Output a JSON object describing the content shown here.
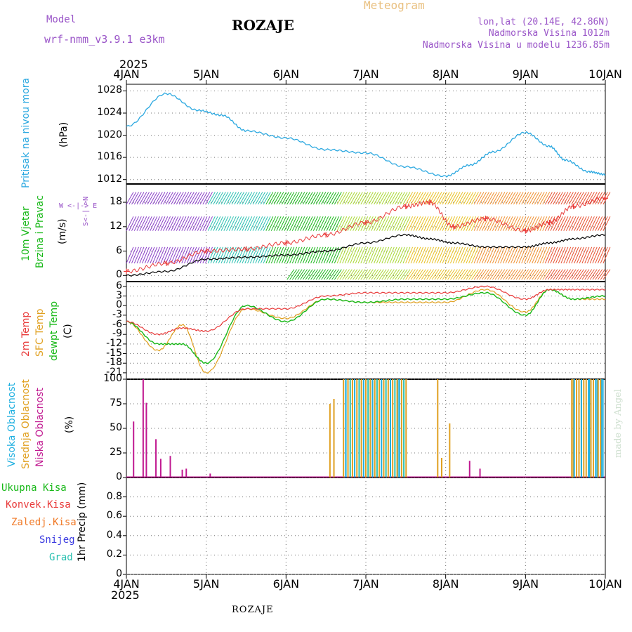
{
  "header": {
    "model_label": "Model",
    "model_name": "wrf-nmm_v3.9.1 e3km",
    "station": "ROZAJE",
    "meteogram": "Meteogram",
    "lonlat": "lon,lat (20.14E, 42.86N)",
    "altitude": "Nadmorska Visina 1012m",
    "model_altitude": "Nadmorska Visina u modelu 1236.85m",
    "year_top": "2025",
    "year_bottom": "2025",
    "footer_station": "ROZAJE",
    "credit": "made by Angel"
  },
  "colors": {
    "pressure": "#2ba8e0",
    "purple": "#8a3fc8",
    "green": "#18b818",
    "red": "#e83a3a",
    "orange": "#f07a28",
    "yellow_orange": "#e0a020",
    "blue": "#3a3ae0",
    "teal": "#28c0b0",
    "magenta": "#c01890",
    "cyan": "#20b0e0"
  },
  "days": [
    "4JAN",
    "5JAN",
    "6JAN",
    "7JAN",
    "8JAN",
    "9JAN",
    "10JAN"
  ],
  "panel_labels": {
    "pressure": {
      "name": "Pritisak na nivou mora",
      "unit": "(hPa)"
    },
    "wind": {
      "line1": "10m Vjetar",
      "line2": "Brzina i Pravac",
      "unit": "(m/s)",
      "compass_we": "W <-|-> E",
      "compass_sn": "S<-|->N"
    },
    "temp": {
      "line1": "2m Temp",
      "line2": "SFC Temp",
      "line3": "dewpt Temp",
      "unit": "(C)"
    },
    "cloud": {
      "line1": "Visoka Oblacnost",
      "line2": "Srednja Oblacnost",
      "line3": "Niska Oblacnost",
      "unit": "(%)"
    },
    "precip": {
      "line1": "Ukupna Kisa",
      "line2": "Konvek.Kisa",
      "line3": "Zaledj.Kisa",
      "line4": "Snijeg",
      "line5": "Grad",
      "unit": "1hr Precip (mm)"
    }
  },
  "chart_data": [
    {
      "type": "line",
      "title": "Pritisak na nivou mora",
      "ylabel": "(hPa)",
      "ylim": [
        1011.2,
        1029.2
      ],
      "yticks": [
        "1012",
        "1016",
        "1020",
        "1024",
        "1028"
      ],
      "x": [
        0,
        0.5,
        0.9,
        1.2,
        1.5,
        2.0,
        2.5,
        3.0,
        3.5,
        4.0,
        4.3,
        4.6,
        5.0,
        5.3,
        5.5,
        5.8,
        6.0
      ],
      "series": [
        {
          "name": "SLP",
          "values": [
            1021.6,
            1027.5,
            1024.5,
            1023.6,
            1020.8,
            1019.5,
            1017.4,
            1016.8,
            1014.3,
            1012.6,
            1014.6,
            1017.0,
            1020.5,
            1018.0,
            1015.5,
            1013.4,
            1012.9
          ]
        }
      ]
    },
    {
      "type": "line",
      "title": "10m Vjetar Brzina i Pravac",
      "ylabel": "(m/s)",
      "ylim": [
        -1.5,
        22.5
      ],
      "yticks": [
        "0",
        "6",
        "12",
        "18"
      ],
      "x": [
        0,
        0.5,
        1.0,
        1.5,
        2.0,
        2.5,
        3.0,
        3.5,
        3.8,
        4.1,
        4.5,
        5.0,
        5.3,
        5.6,
        6.0
      ],
      "series": [
        {
          "name": "speed",
          "values": [
            1,
            3,
            6,
            6.5,
            8,
            10,
            13,
            17,
            18,
            12,
            14,
            11,
            13,
            17,
            19
          ]
        },
        {
          "name": "gust",
          "values": [
            0,
            1,
            4,
            4.5,
            5,
            6,
            8,
            10,
            9,
            8,
            7,
            7,
            8,
            9,
            10
          ]
        }
      ]
    },
    {
      "type": "line",
      "title": "2m / SFC / dewpt Temp",
      "ylabel": "(C)",
      "ylim": [
        -23,
        7.5
      ],
      "yticks": [
        "6",
        "3",
        "0",
        "-3",
        "-6",
        "-9",
        "-12",
        "-15",
        "-18",
        "-21"
      ],
      "x": [
        0,
        0.4,
        0.7,
        1.0,
        1.5,
        2.0,
        2.5,
        3.0,
        3.5,
        4.0,
        4.5,
        5.0,
        5.3,
        5.6,
        6.0
      ],
      "series": [
        {
          "name": "2m Temp",
          "values": [
            -5,
            -9,
            -7,
            -8,
            -1,
            -1,
            3,
            4,
            4,
            4,
            6,
            2,
            5,
            5,
            5
          ]
        },
        {
          "name": "SFC Temp",
          "values": [
            -5,
            -14,
            -6,
            -21,
            -1,
            -4,
            2,
            1,
            1,
            1,
            5,
            -2,
            5,
            2,
            2
          ]
        },
        {
          "name": "dewpt Temp",
          "values": [
            -5,
            -12,
            -12,
            -18,
            0,
            -5,
            2,
            1,
            2,
            2,
            4,
            -3,
            5,
            2,
            3
          ]
        }
      ]
    },
    {
      "type": "bar",
      "title": "Oblacnost",
      "ylabel": "(%)",
      "ylim": [
        0,
        100
      ],
      "yticks": [
        "0",
        "25",
        "50",
        "75",
        "100"
      ],
      "series": [
        {
          "name": "Niska Oblacnost",
          "x": [
            0.09,
            0.21,
            0.25,
            0.37,
            0.43,
            0.55,
            0.7,
            0.75,
            1.05,
            4.3,
            4.43
          ],
          "values": [
            57,
            100,
            76,
            39,
            19,
            22,
            8,
            9,
            4,
            17,
            9
          ]
        },
        {
          "name": "Srednja Oblacnost",
          "x": [
            2.55,
            2.6,
            3.9,
            3.95,
            4.05,
            5.6,
            5.7
          ],
          "values": [
            75,
            80,
            100,
            20,
            55,
            100,
            100
          ]
        },
        {
          "name": "Visoka Oblacnost",
          "x": [
            2.75,
            3.0,
            3.4,
            5.8,
            5.9,
            5.95
          ],
          "values": [
            100,
            100,
            100,
            100,
            100,
            100
          ]
        }
      ]
    },
    {
      "type": "bar",
      "title": "1hr Precip",
      "ylabel": "1hr Precip (mm)",
      "ylim": [
        0,
        1.0
      ],
      "yticks": [
        "0",
        "0.2",
        "0.4",
        "0.6",
        "0.8"
      ],
      "series": [
        {
          "name": "Ukupna Kisa",
          "x": [],
          "values": []
        }
      ]
    }
  ]
}
